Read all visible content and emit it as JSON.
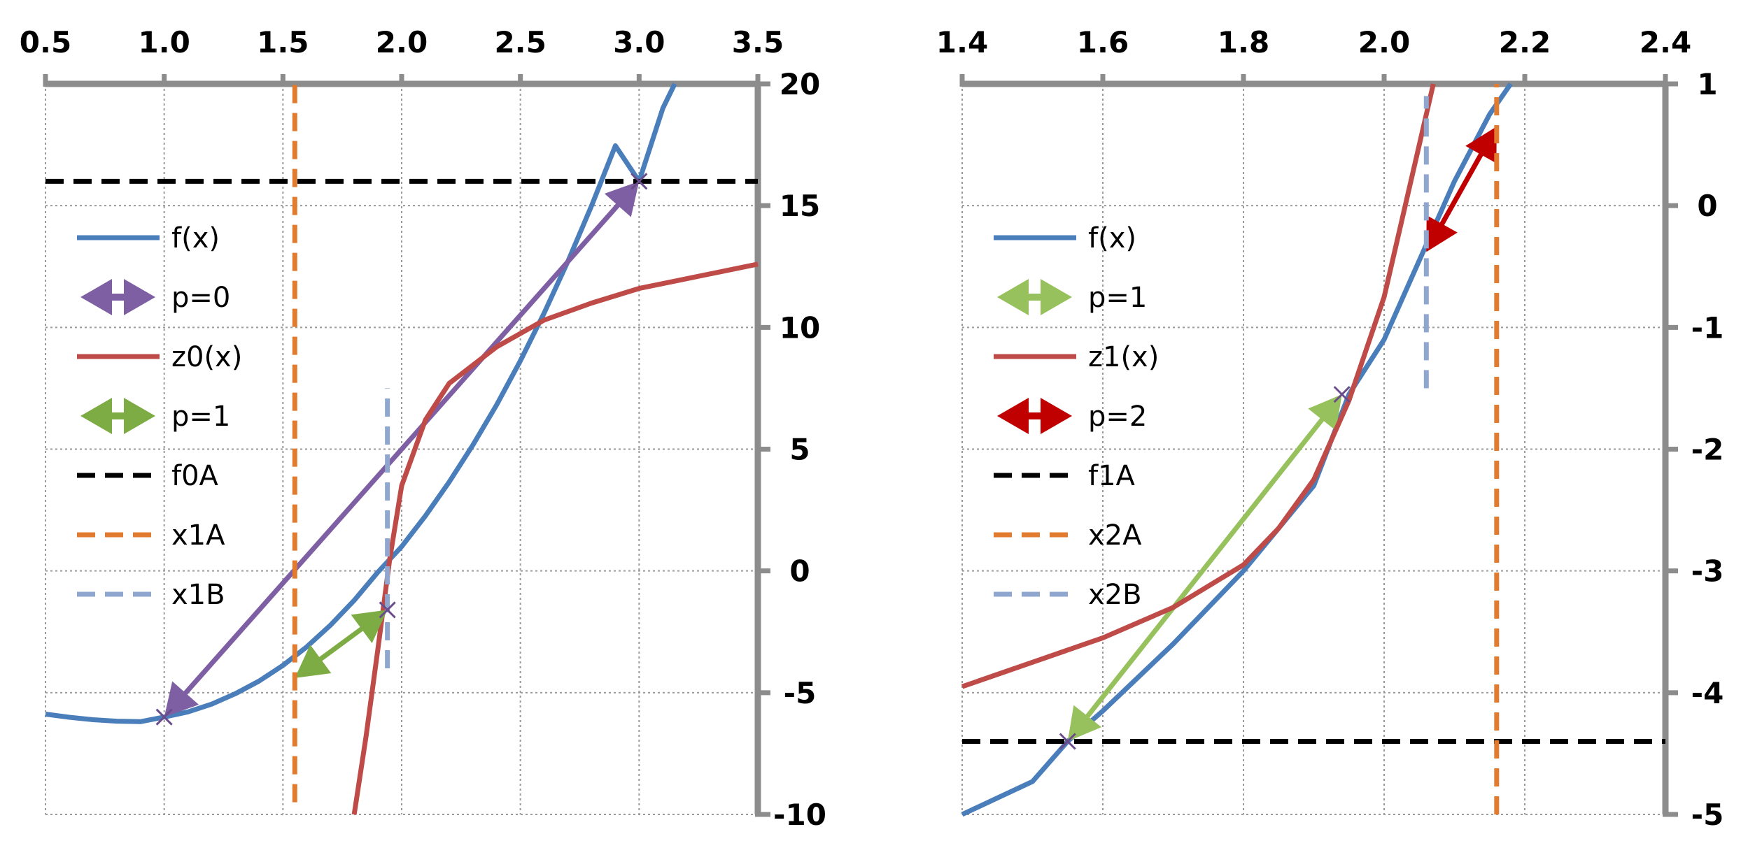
{
  "chart_data": [
    {
      "type": "line",
      "title": "",
      "xlabel": "",
      "ylabel": "",
      "xlim": [
        0.5,
        3.5
      ],
      "ylim": [
        -10,
        20
      ],
      "x_ticks": [
        0.5,
        1.0,
        1.5,
        2.0,
        2.5,
        3.0,
        3.5
      ],
      "x_tick_labels": [
        "0.5",
        "1.0",
        "1.5",
        "2.0",
        "2.5",
        "3.0",
        "3.5"
      ],
      "y_ticks": [
        -10,
        -5,
        0,
        5,
        10,
        15,
        20
      ],
      "y_tick_labels": [
        "-10",
        "-5",
        "0",
        "5",
        "10",
        "15",
        "20"
      ],
      "x_axis_position": "top",
      "y_axis_position": "right",
      "grid": true,
      "legend_position": "left",
      "series": [
        {
          "name": "f(x)",
          "kind": "curve",
          "color": "#4a7ebb",
          "x": [
            0.5,
            0.6,
            0.7,
            0.8,
            0.9,
            1.0,
            1.1,
            1.2,
            1.3,
            1.4,
            1.5,
            1.6,
            1.7,
            1.8,
            1.9,
            2.0,
            2.1,
            2.2,
            2.3,
            2.4,
            2.5,
            2.6,
            2.7,
            2.8,
            2.9,
            3.0,
            3.1,
            3.15
          ],
          "y": [
            -5.88,
            -6.01,
            -6.11,
            -6.17,
            -6.19,
            -6.0,
            -5.79,
            -5.47,
            -5.04,
            -4.52,
            -3.88,
            -3.12,
            -2.23,
            -1.21,
            -0.05,
            1.0,
            2.26,
            3.65,
            5.17,
            6.82,
            8.63,
            10.59,
            12.71,
            15.0,
            17.46,
            16.0,
            19.0,
            20.0
          ]
        },
        {
          "name": "p=0",
          "kind": "double-arrow",
          "color": "#7f5fa3",
          "x": [
            1.0,
            3.0
          ],
          "y": [
            -6.0,
            16.0
          ]
        },
        {
          "name": "z0(x)",
          "kind": "curve",
          "color": "#be4b48",
          "x": [
            1.8,
            1.85,
            1.9,
            1.95,
            2.0,
            2.1,
            2.2,
            2.4,
            2.6,
            2.8,
            3.0,
            3.2,
            3.5
          ],
          "y": [
            -10.0,
            -6.8,
            -3.2,
            0.5,
            3.5,
            6.2,
            7.7,
            9.2,
            10.3,
            11.0,
            11.6,
            12.0,
            12.6
          ]
        },
        {
          "name": "p=1",
          "kind": "double-arrow",
          "color": "#7eac44",
          "x": [
            1.55,
            1.94
          ],
          "y": [
            -4.4,
            -1.6
          ]
        },
        {
          "name": "f0A",
          "kind": "hline",
          "color": "#000000",
          "y": 16.0
        },
        {
          "name": "x1A",
          "kind": "vline",
          "color": "#e07b30",
          "x": 1.55,
          "y_range": [
            -9.5,
            20.0
          ]
        },
        {
          "name": "x1B",
          "kind": "vline",
          "color": "#8fa7cf",
          "x": 1.94,
          "y_range": [
            -4.0,
            7.5
          ]
        }
      ],
      "markers": [
        {
          "x": 1.0,
          "y": -6.0
        },
        {
          "x": 3.0,
          "y": 16.0
        },
        {
          "x": 1.94,
          "y": -1.6
        }
      ]
    },
    {
      "type": "line",
      "title": "",
      "xlabel": "",
      "ylabel": "",
      "xlim": [
        1.4,
        2.4
      ],
      "ylim": [
        -5,
        1
      ],
      "x_ticks": [
        1.4,
        1.6,
        1.8,
        2.0,
        2.2,
        2.4
      ],
      "x_tick_labels": [
        "1.4",
        "1.6",
        "1.8",
        "2.0",
        "2.2",
        "2.4"
      ],
      "y_ticks": [
        -5,
        -4,
        -3,
        -2,
        -1,
        0,
        1
      ],
      "y_tick_labels": [
        "-5",
        "-4",
        "-3",
        "-2",
        "-1",
        "0",
        "1"
      ],
      "x_axis_position": "top",
      "y_axis_position": "right",
      "grid": true,
      "legend_position": "left",
      "series": [
        {
          "name": "f(x)",
          "kind": "curve",
          "color": "#4a7ebb",
          "x": [
            1.4,
            1.5,
            1.55,
            1.6,
            1.7,
            1.8,
            1.9,
            1.95,
            2.0,
            2.05,
            2.1,
            2.15,
            2.18
          ],
          "y": [
            -5.0,
            -4.73,
            -4.4,
            -4.15,
            -3.6,
            -3.0,
            -2.3,
            -1.55,
            -1.1,
            -0.45,
            0.2,
            0.75,
            1.0
          ]
        },
        {
          "name": "p=1",
          "kind": "double-arrow",
          "color": "#97c15c",
          "x": [
            1.55,
            1.94
          ],
          "y": [
            -4.4,
            -1.55
          ]
        },
        {
          "name": "z1(x)",
          "kind": "curve",
          "color": "#be4b48",
          "x": [
            1.4,
            1.5,
            1.6,
            1.7,
            1.8,
            1.85,
            1.9,
            1.95,
            2.0,
            2.03,
            2.05,
            2.07
          ],
          "y": [
            -3.95,
            -3.75,
            -3.55,
            -3.3,
            -2.95,
            -2.65,
            -2.25,
            -1.6,
            -0.75,
            0.0,
            0.5,
            1.0
          ]
        },
        {
          "name": "p=2",
          "kind": "double-arrow",
          "color": "#c00000",
          "x": [
            2.06,
            2.16
          ],
          "y": [
            -0.38,
            0.65
          ]
        },
        {
          "name": "f1A",
          "kind": "hline",
          "color": "#000000",
          "y": -4.4
        },
        {
          "name": "x2A",
          "kind": "vline",
          "color": "#e07b30",
          "x": 2.16,
          "y_range": [
            -5.0,
            1.0
          ]
        },
        {
          "name": "x2B",
          "kind": "vline",
          "color": "#8fa7cf",
          "x": 2.06,
          "y_range": [
            -1.5,
            0.9
          ]
        }
      ],
      "markers": [
        {
          "x": 1.55,
          "y": -4.4
        },
        {
          "x": 1.94,
          "y": -1.55
        }
      ]
    }
  ]
}
